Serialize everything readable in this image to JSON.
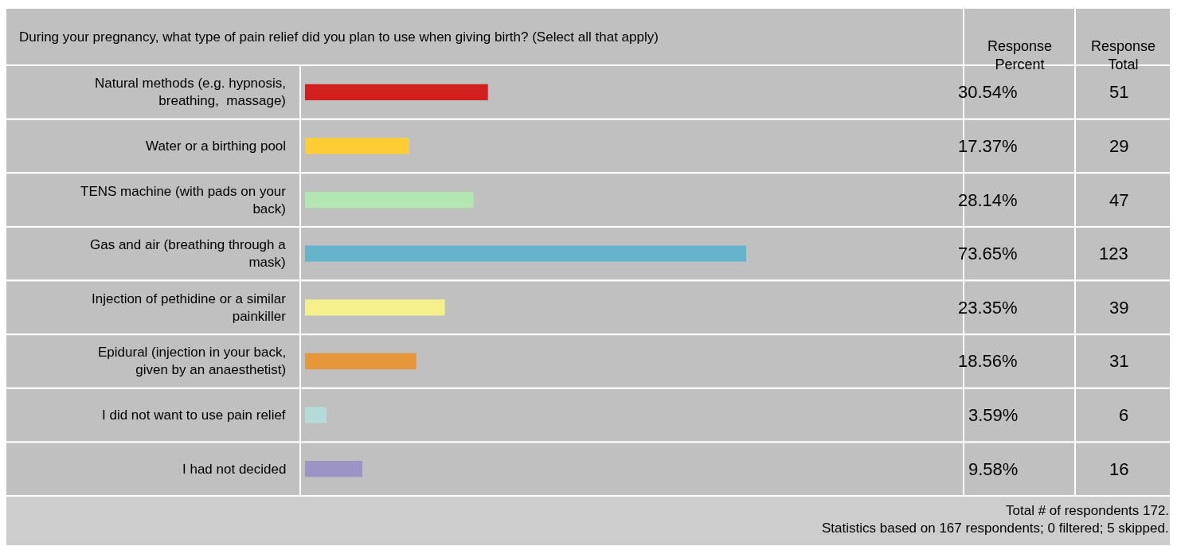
{
  "chart_data": {
    "type": "bar",
    "orientation": "horizontal",
    "title": "During your pregnancy, what type of pain relief did you plan to use when giving birth? (Select all that apply)",
    "categories": [
      "Natural methods (e.g. hypnosis, breathing,  massage)",
      "Water or a birthing pool",
      "TENS machine (with pads on your back)",
      "Gas and air (breathing through a mask)",
      "Injection of pethidine or a similar painkiller",
      "Epidural (injection in your back, given by an anaesthetist)",
      "I did not want to use pain relief",
      "I had not decided"
    ],
    "values": [
      30.54,
      17.37,
      28.14,
      73.65,
      23.35,
      18.56,
      3.59,
      9.58
    ],
    "colors": [
      "#d41f1f",
      "#ffcc33",
      "#b3e6b0",
      "#66b3cc",
      "#f5f08c",
      "#e8963a",
      "#b3dcd8",
      "#9d94c6"
    ],
    "value_labels": [
      "30.54%",
      "17.37%",
      "28.14%",
      "73.65%",
      "23.35%",
      "18.56%",
      "3.59%",
      "9.58%"
    ],
    "annotations": [
      "Response Percent",
      "Response Total",
      "Total # of respondents 172.",
      "Statistics based on 167 respondents; 0 filtered; 5 skipped.",
      "51",
      "29",
      "47",
      "123",
      "39",
      "31",
      "6",
      "16"
    ],
    "legend": false
  }
}
